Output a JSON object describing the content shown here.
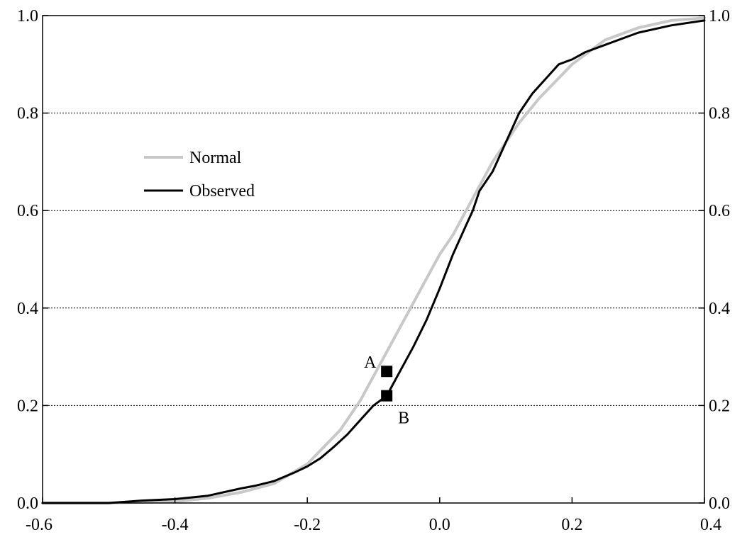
{
  "chart_data": {
    "type": "line",
    "title": "",
    "xlabel": "",
    "ylabel": "",
    "xlim": [
      -0.6,
      0.4
    ],
    "ylim": [
      0.0,
      1.0
    ],
    "x_ticks": [
      "-0.6",
      "-0.4",
      "-0.2",
      "0.0",
      "0.2",
      "0.4"
    ],
    "y_ticks": [
      "0.0",
      "0.2",
      "0.4",
      "0.6",
      "0.8",
      "1.0"
    ],
    "grid": "horizontal dotted",
    "legend_placement": "upper-left",
    "series": [
      {
        "name": "Normal",
        "color": "#c8c8c8",
        "x": [
          -0.6,
          -0.5,
          -0.4,
          -0.35,
          -0.3,
          -0.25,
          -0.2,
          -0.15,
          -0.12,
          -0.1,
          -0.08,
          -0.06,
          -0.04,
          -0.02,
          0.0,
          0.02,
          0.04,
          0.06,
          0.08,
          0.1,
          0.12,
          0.15,
          0.2,
          0.25,
          0.3,
          0.35,
          0.4
        ],
        "y": [
          0.0,
          0.0,
          0.003,
          0.01,
          0.022,
          0.04,
          0.08,
          0.15,
          0.21,
          0.26,
          0.31,
          0.36,
          0.41,
          0.46,
          0.51,
          0.55,
          0.6,
          0.65,
          0.7,
          0.74,
          0.78,
          0.83,
          0.9,
          0.95,
          0.975,
          0.99,
          0.995
        ]
      },
      {
        "name": "Observed",
        "color": "#000000",
        "x": [
          -0.6,
          -0.5,
          -0.45,
          -0.4,
          -0.35,
          -0.3,
          -0.28,
          -0.25,
          -0.22,
          -0.2,
          -0.18,
          -0.16,
          -0.14,
          -0.12,
          -0.1,
          -0.08,
          -0.07,
          -0.06,
          -0.04,
          -0.02,
          0.0,
          0.02,
          0.04,
          0.05,
          0.06,
          0.08,
          0.1,
          0.12,
          0.14,
          0.16,
          0.18,
          0.2,
          0.22,
          0.25,
          0.3,
          0.35,
          0.4
        ],
        "y": [
          0.0,
          0.0,
          0.005,
          0.008,
          0.015,
          0.03,
          0.035,
          0.045,
          0.062,
          0.075,
          0.092,
          0.115,
          0.14,
          0.17,
          0.2,
          0.22,
          0.245,
          0.27,
          0.32,
          0.375,
          0.44,
          0.51,
          0.57,
          0.6,
          0.64,
          0.68,
          0.74,
          0.8,
          0.84,
          0.87,
          0.9,
          0.91,
          0.925,
          0.94,
          0.965,
          0.98,
          0.99
        ]
      }
    ],
    "markers": [
      {
        "label": "A",
        "x": -0.08,
        "y": 0.27
      },
      {
        "label": "B",
        "x": -0.08,
        "y": 0.22
      }
    ]
  }
}
